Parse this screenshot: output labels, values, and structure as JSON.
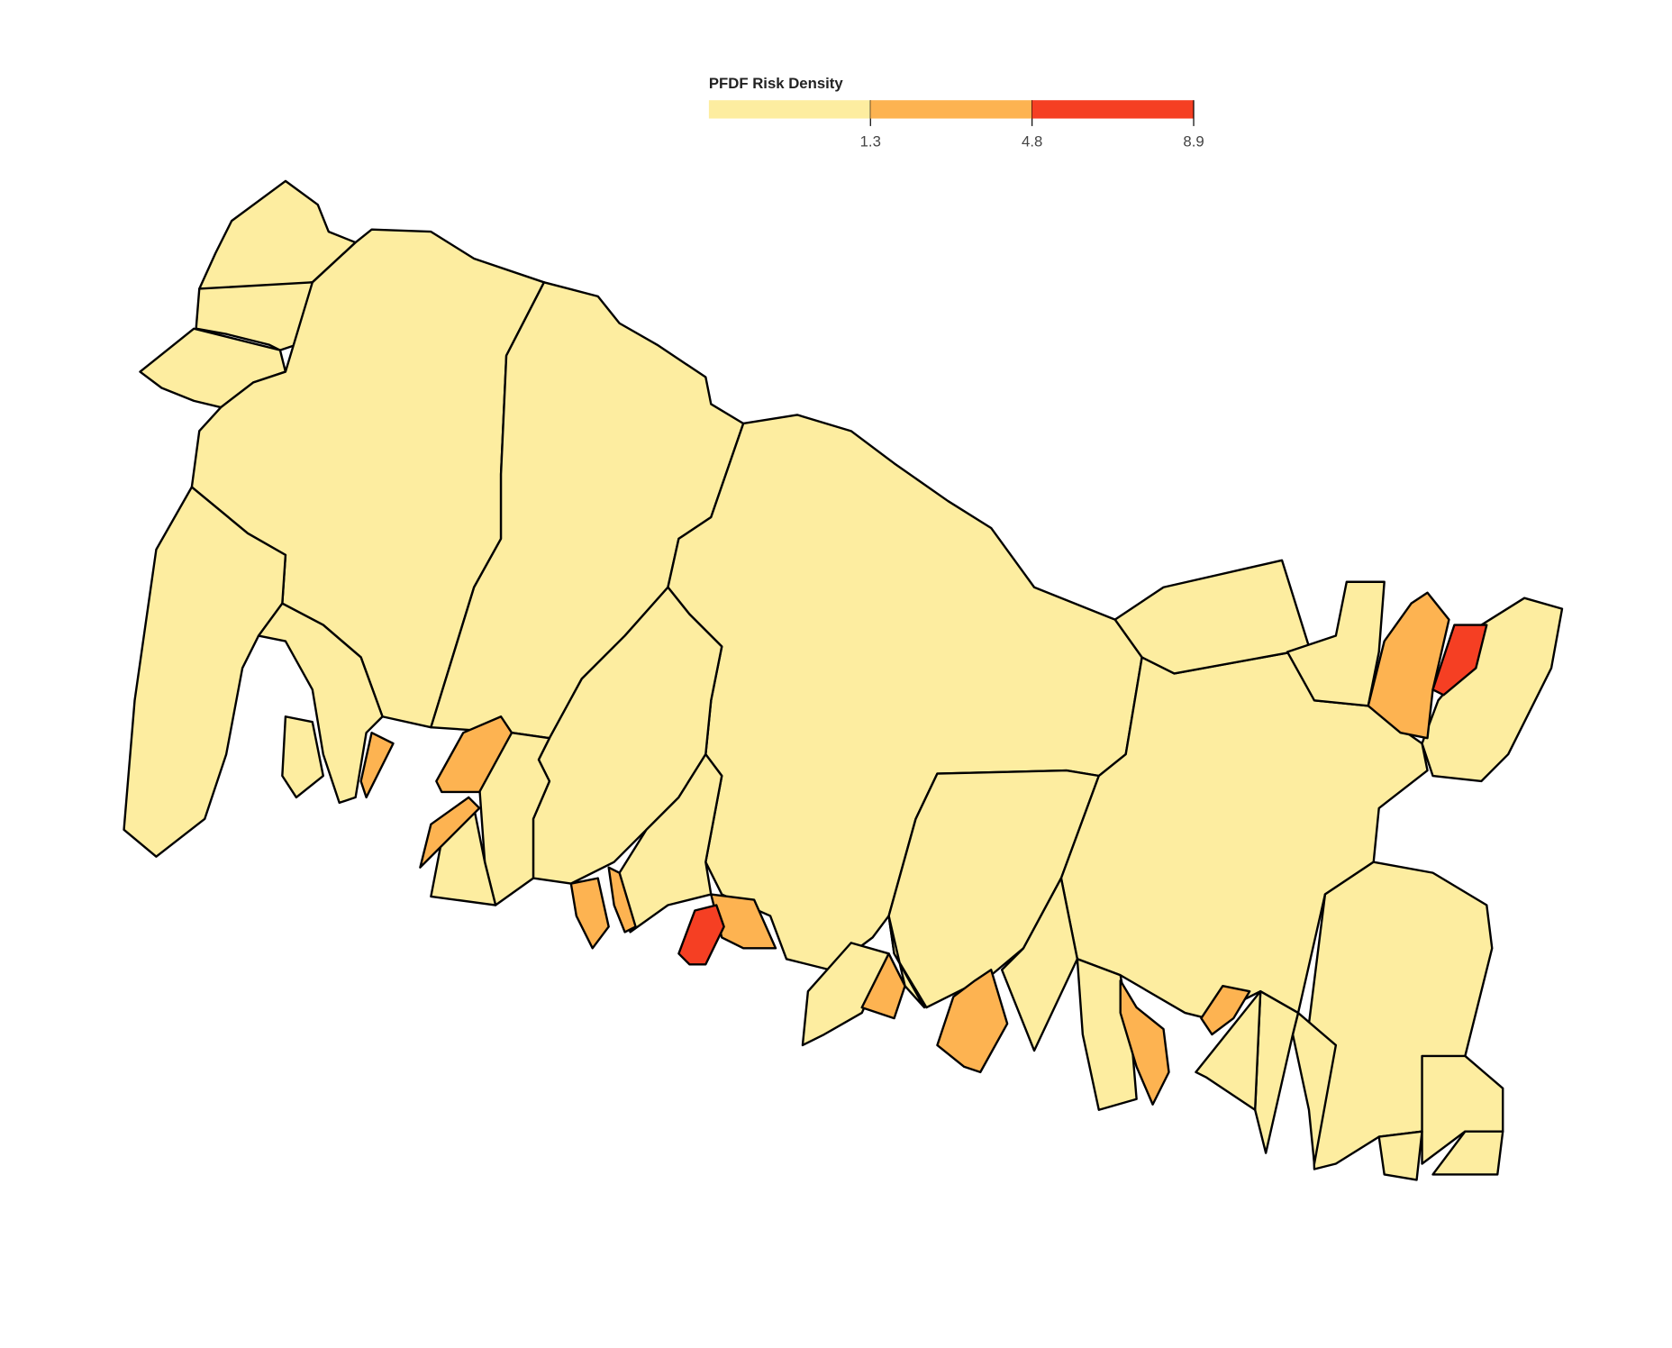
{
  "legend": {
    "title": "PFDF Risk Density",
    "breaks": [
      1.3,
      4.8,
      8.9
    ],
    "colors": [
      "#fdeda0",
      "#fdb351",
      "#f53f23"
    ]
  }
}
